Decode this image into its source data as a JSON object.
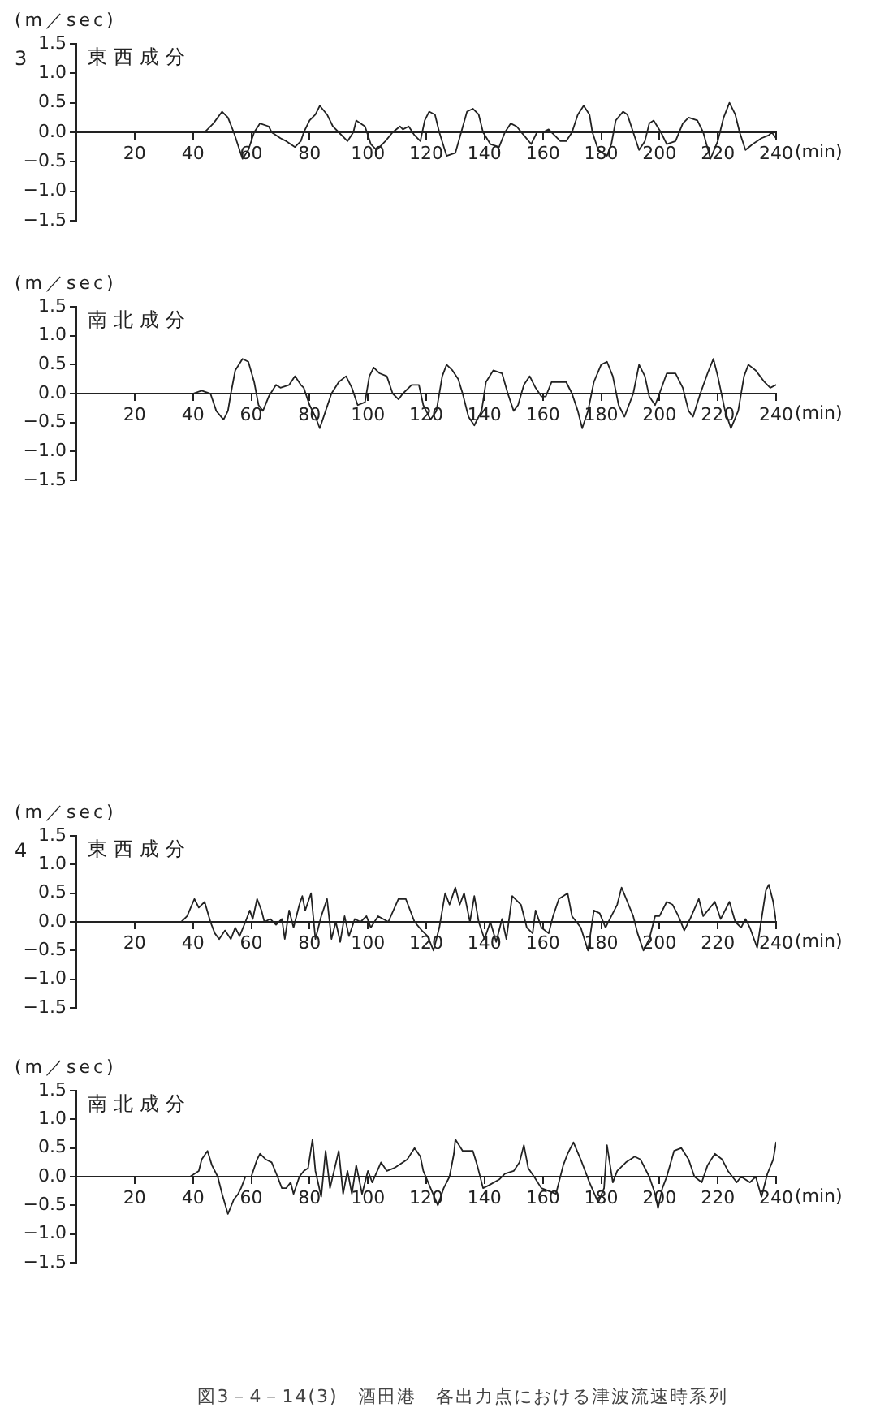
{
  "chart_data": [
    {
      "type": "line",
      "title": "東西成分",
      "subtitle": "3",
      "ylabel": "(m／sec)",
      "xlabel": "(min)",
      "xlim": [
        0,
        240
      ],
      "ylim": [
        -1.5,
        1.5
      ],
      "xticks": [
        20,
        40,
        60,
        80,
        100,
        120,
        140,
        160,
        180,
        200,
        220,
        240
      ],
      "yticks": [
        {
          "value": -1.5,
          "label": "−1.5"
        },
        {
          "value": -1,
          "label": "−1.0"
        },
        {
          "value": -0.5,
          "label": "−0.5"
        },
        {
          "value": 0,
          "label": "0.0"
        },
        {
          "value": 0.5,
          "label": "0.5"
        },
        {
          "value": 1,
          "label": "1.0"
        },
        {
          "value": 1.5,
          "label": "1.5"
        }
      ],
      "color": "#222222",
      "x": [
        0,
        40,
        44,
        47,
        50,
        52,
        54,
        57,
        59,
        61,
        63,
        66,
        67,
        70,
        72,
        75,
        77,
        78,
        80,
        82,
        83.5,
        86,
        88,
        90,
        93,
        95,
        96,
        99,
        101,
        103,
        106,
        108.5,
        111,
        112,
        114,
        116,
        118,
        119.5,
        121,
        123,
        124.5,
        127,
        130,
        132,
        134,
        136,
        138,
        139.5,
        142,
        145,
        147,
        149,
        151,
        153.5,
        156,
        158,
        160,
        162,
        164,
        166,
        168,
        170,
        172,
        174,
        176,
        177,
        179,
        182,
        183.5,
        185,
        187.5,
        189,
        191,
        193,
        195,
        196.5,
        198,
        200.5,
        202.5,
        205.5,
        208,
        210,
        213,
        215,
        217.5,
        220,
        222,
        224,
        226,
        227.5,
        229.5,
        232,
        235,
        237.5,
        238.5,
        240
      ],
      "values": [
        0,
        0,
        0,
        0.15,
        0.35,
        0.25,
        0,
        -0.45,
        -0.3,
        0,
        0.15,
        0.1,
        0,
        -0.1,
        -0.15,
        -0.25,
        -0.15,
        0,
        0.2,
        0.3,
        0.45,
        0.3,
        0.1,
        0,
        -0.15,
        0,
        0.2,
        0.1,
        -0.2,
        -0.3,
        -0.15,
        0,
        0.1,
        0.05,
        0.1,
        -0.05,
        -0.15,
        0.2,
        0.35,
        0.3,
        0,
        -0.4,
        -0.35,
        0,
        0.35,
        0.4,
        0.3,
        0,
        -0.2,
        -0.25,
        0,
        0.15,
        0.1,
        -0.05,
        -0.2,
        0,
        0,
        0.05,
        -0.05,
        -0.15,
        -0.15,
        0,
        0.3,
        0.45,
        0.3,
        0,
        -0.3,
        -0.4,
        -0.2,
        0.2,
        0.35,
        0.3,
        0,
        -0.3,
        -0.15,
        0.15,
        0.2,
        0,
        -0.2,
        -0.15,
        0.15,
        0.25,
        0.2,
        0,
        -0.45,
        -0.15,
        0.25,
        0.5,
        0.3,
        0,
        -0.3,
        -0.2,
        -0.1,
        -0.05,
        0,
        -0.1
      ]
    },
    {
      "type": "line",
      "title": "南北成分",
      "ylabel": "(m／sec)",
      "xlabel": "(min)",
      "xlim": [
        0,
        240
      ],
      "ylim": [
        -1.5,
        1.5
      ],
      "xticks": [
        20,
        40,
        60,
        80,
        100,
        120,
        140,
        160,
        180,
        200,
        220,
        240
      ],
      "yticks": [
        {
          "value": -1.5,
          "label": "−1.5"
        },
        {
          "value": -1,
          "label": "−1.0"
        },
        {
          "value": -0.5,
          "label": "−0.5"
        },
        {
          "value": 0,
          "label": "0.0"
        },
        {
          "value": 0.5,
          "label": "0.5"
        },
        {
          "value": 1,
          "label": "1.0"
        },
        {
          "value": 1.5,
          "label": "1.5"
        }
      ],
      "color": "#222222",
      "x": [
        0,
        40,
        43,
        46,
        48,
        50.5,
        52,
        53,
        54.5,
        57,
        59,
        61,
        62.5,
        64,
        66,
        68.5,
        70,
        73,
        75,
        77,
        78,
        80,
        82,
        83.5,
        85.5,
        87.5,
        90,
        92.5,
        94.5,
        96.5,
        99,
        100.5,
        102,
        104,
        106.5,
        108.5,
        110.5,
        112,
        115,
        117.5,
        119,
        121.5,
        123.5,
        125.5,
        127,
        129,
        131,
        132.5,
        134.5,
        136.5,
        139,
        140.5,
        143,
        146,
        148,
        150,
        151.5,
        153.5,
        155.5,
        157.5,
        159.5,
        161,
        163,
        166,
        168,
        170,
        172,
        173.5,
        175.5,
        177.5,
        180,
        182,
        184,
        186,
        188,
        191,
        193,
        195,
        196.5,
        198.5,
        200,
        202.5,
        205.5,
        208,
        210,
        211.5,
        214,
        216.5,
        218.5,
        220,
        222.5,
        224.5,
        227,
        229,
        230.5,
        233,
        234.5,
        236,
        238,
        240
      ],
      "values": [
        0,
        0,
        0.05,
        0,
        -0.3,
        -0.45,
        -0.3,
        0,
        0.4,
        0.6,
        0.55,
        0.2,
        -0.2,
        -0.3,
        -0.05,
        0.15,
        0.1,
        0.15,
        0.3,
        0.15,
        0.1,
        -0.2,
        -0.4,
        -0.6,
        -0.3,
        0,
        0.2,
        0.3,
        0.1,
        -0.2,
        -0.15,
        0.3,
        0.45,
        0.35,
        0.3,
        0,
        -0.1,
        0,
        0.15,
        0.15,
        -0.2,
        -0.45,
        -0.3,
        0.3,
        0.5,
        0.4,
        0.25,
        0,
        -0.4,
        -0.55,
        -0.3,
        0.2,
        0.4,
        0.35,
        0,
        -0.3,
        -0.2,
        0.15,
        0.3,
        0.1,
        -0.05,
        -0.05,
        0.2,
        0.2,
        0.2,
        0,
        -0.3,
        -0.6,
        -0.3,
        0.2,
        0.5,
        0.55,
        0.3,
        -0.2,
        -0.4,
        0,
        0.5,
        0.3,
        -0.05,
        -0.2,
        0,
        0.35,
        0.35,
        0.1,
        -0.3,
        -0.4,
        0,
        0.35,
        0.6,
        0.3,
        -0.3,
        -0.6,
        -0.3,
        0.3,
        0.5,
        0.4,
        0.3,
        0.2,
        0.1,
        0.15
      ]
    },
    {
      "type": "line",
      "title": "東西成分",
      "subtitle": "4",
      "ylabel": "(m／sec)",
      "xlabel": "(min)",
      "xlim": [
        0,
        240
      ],
      "ylim": [
        -1.5,
        1.5
      ],
      "xticks": [
        20,
        40,
        60,
        80,
        100,
        120,
        140,
        160,
        180,
        200,
        220,
        240
      ],
      "yticks": [
        {
          "value": -1.5,
          "label": "−1.5"
        },
        {
          "value": -1,
          "label": "−1.0"
        },
        {
          "value": -0.5,
          "label": "−0.5"
        },
        {
          "value": 0,
          "label": "0.0"
        },
        {
          "value": 0.5,
          "label": "0.5"
        },
        {
          "value": 1,
          "label": "1.0"
        },
        {
          "value": 1.5,
          "label": "1.5"
        }
      ],
      "color": "#222222",
      "x": [
        0,
        36,
        38,
        40.5,
        42,
        44,
        46,
        47.5,
        49,
        51,
        53,
        54.5,
        56,
        58,
        59.5,
        60.5,
        62,
        63.5,
        64.5,
        66.5,
        68.5,
        70.5,
        71.5,
        73,
        74.5,
        76.5,
        77.5,
        78.5,
        80.5,
        82,
        84,
        86,
        87.5,
        89,
        90.5,
        92,
        93.5,
        95.5,
        97.5,
        99.5,
        101,
        103.5,
        107,
        110.5,
        113,
        116,
        118.5,
        120.5,
        122.5,
        124.5,
        126.5,
        128,
        130,
        131.5,
        133,
        135,
        136.5,
        138,
        140,
        142,
        144,
        146,
        147.5,
        149.5,
        152.5,
        154.5,
        156.5,
        157.5,
        159.5,
        162,
        163.5,
        165.5,
        168.5,
        170,
        173,
        175.5,
        177.5,
        179.5,
        181.5,
        183.5,
        185.5,
        187,
        189,
        191,
        192.5,
        194.5,
        196.5,
        198.5,
        200,
        202.5,
        204.5,
        206.5,
        208.5,
        210.5,
        213.5,
        215,
        219,
        221,
        224,
        226,
        228,
        229.5,
        231,
        233.5,
        235,
        236.5,
        237.5,
        239,
        240
      ],
      "values": [
        0,
        0,
        0.1,
        0.4,
        0.25,
        0.35,
        0,
        -0.2,
        -0.3,
        -0.15,
        -0.3,
        -0.1,
        -0.25,
        0,
        0.2,
        0.05,
        0.4,
        0.2,
        0,
        0.05,
        -0.05,
        0.05,
        -0.3,
        0.2,
        -0.1,
        0.3,
        0.45,
        0.2,
        0.5,
        -0.3,
        0.1,
        0.4,
        -0.3,
        0,
        -0.35,
        0.1,
        -0.25,
        0.05,
        0,
        0.1,
        -0.1,
        0.1,
        0,
        0.4,
        0.4,
        0,
        -0.15,
        -0.25,
        -0.5,
        -0.1,
        0.5,
        0.3,
        0.6,
        0.3,
        0.5,
        0,
        0.45,
        0,
        -0.3,
        0,
        -0.35,
        0.05,
        -0.3,
        0.45,
        0.3,
        -0.1,
        -0.2,
        0.2,
        -0.1,
        -0.2,
        0.1,
        0.4,
        0.5,
        0.1,
        -0.1,
        -0.5,
        0.2,
        0.15,
        -0.1,
        0.1,
        0.3,
        0.6,
        0.35,
        0.1,
        -0.2,
        -0.5,
        -0.3,
        0.1,
        0.1,
        0.35,
        0.3,
        0.1,
        -0.15,
        0.05,
        0.4,
        0.1,
        0.35,
        0.05,
        0.35,
        0,
        -0.1,
        0.05,
        -0.1,
        -0.45,
        0.05,
        0.55,
        0.65,
        0.35,
        0
      ]
    },
    {
      "type": "line",
      "title": "南北成分",
      "ylabel": "(m／sec)",
      "xlabel": "(min)",
      "xlim": [
        0,
        240
      ],
      "ylim": [
        -1.5,
        1.5
      ],
      "xticks": [
        20,
        40,
        60,
        80,
        100,
        120,
        140,
        160,
        180,
        200,
        220,
        240
      ],
      "yticks": [
        {
          "value": -1.5,
          "label": "−1.5"
        },
        {
          "value": -1,
          "label": "−1.0"
        },
        {
          "value": -0.5,
          "label": "−0.5"
        },
        {
          "value": 0,
          "label": "0.0"
        },
        {
          "value": 0.5,
          "label": "0.5"
        },
        {
          "value": 1,
          "label": "1.0"
        },
        {
          "value": 1.5,
          "label": "1.5"
        }
      ],
      "color": "#222222",
      "annotations": [
        "図3－4－14(3)　酒田港　各出力点における津波流速時系列"
      ],
      "x": [
        0,
        39,
        42,
        43,
        45,
        46.5,
        48.5,
        50,
        52,
        54,
        55.5,
        56.5,
        58,
        60,
        62,
        63,
        65,
        67,
        69,
        70.5,
        72,
        73.5,
        74.5,
        76.5,
        78,
        79.5,
        81,
        82,
        84,
        85.5,
        87,
        90,
        91.5,
        93,
        94.5,
        96,
        98,
        100,
        101.5,
        104.5,
        106.5,
        109,
        113.5,
        116,
        118,
        119,
        121.5,
        124,
        126,
        128,
        129.5,
        130,
        132.5,
        136,
        137.5,
        139.5,
        141.5,
        145,
        147,
        150,
        152,
        153.5,
        155,
        157,
        159.5,
        164.5,
        167,
        168.5,
        170.5,
        173,
        176,
        179,
        181,
        182,
        184,
        185.5,
        188.5,
        191.5,
        193.5,
        196.5,
        198.5,
        199.5,
        201,
        202.5,
        205,
        207.5,
        210,
        212,
        214.5,
        216.5,
        219,
        221.5,
        223.5,
        226.5,
        228,
        231,
        233,
        235,
        237,
        239,
        240
      ],
      "values": [
        0,
        0,
        0.1,
        0.3,
        0.45,
        0.2,
        0,
        -0.3,
        -0.65,
        -0.4,
        -0.3,
        -0.2,
        0,
        0,
        0.3,
        0.4,
        0.3,
        0.25,
        0,
        -0.2,
        -0.2,
        -0.1,
        -0.3,
        0,
        0.1,
        0.15,
        0.65,
        0.1,
        -0.35,
        0.45,
        -0.2,
        0.45,
        -0.3,
        0.1,
        -0.3,
        0.2,
        -0.3,
        0.1,
        -0.1,
        0.25,
        0.1,
        0.15,
        0.3,
        0.5,
        0.35,
        0.1,
        -0.2,
        -0.5,
        -0.2,
        0,
        0.4,
        0.65,
        0.45,
        0.45,
        0.2,
        -0.2,
        -0.15,
        -0.05,
        0.05,
        0.1,
        0.25,
        0.55,
        0.15,
        0,
        -0.2,
        -0.3,
        0.2,
        0.4,
        0.6,
        0.3,
        -0.1,
        -0.45,
        -0.2,
        0.55,
        -0.1,
        0.1,
        0.25,
        0.35,
        0.3,
        0,
        -0.3,
        -0.55,
        -0.2,
        0,
        0.45,
        0.5,
        0.3,
        0,
        -0.1,
        0.2,
        0.4,
        0.3,
        0.1,
        -0.1,
        0,
        -0.1,
        0,
        -0.35,
        0.05,
        0.3,
        0.6
      ]
    }
  ]
}
